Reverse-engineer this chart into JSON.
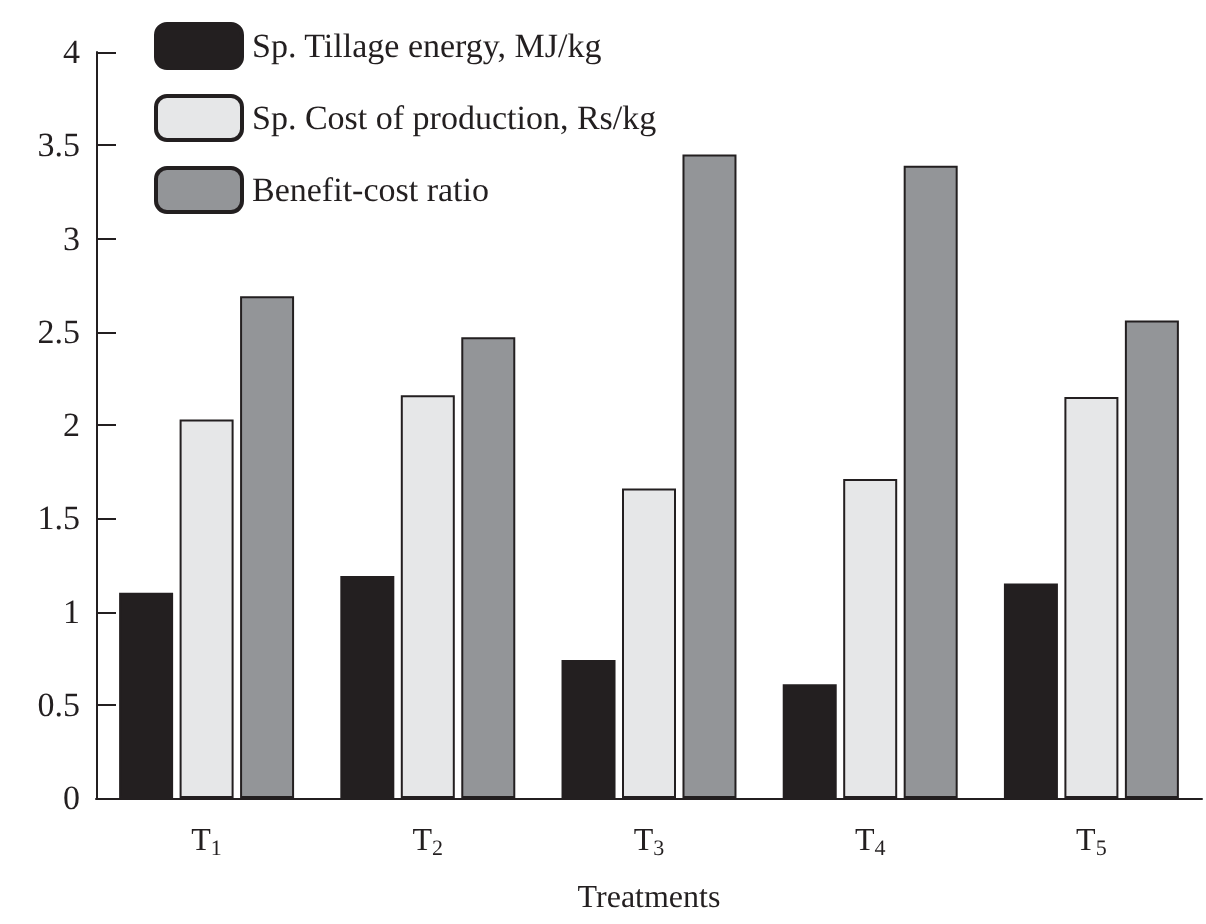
{
  "chart_data": {
    "type": "bar",
    "xlabel": "Treatments",
    "categories": [
      "T$_{1}$",
      "T$_{2}$",
      "T$_{3}$",
      "T$_{4}$",
      "T$_{5}$"
    ],
    "series": [
      {
        "name": "Sp. Tillage energy, MJ/kg",
        "color": "#231f20",
        "values": [
          1.1,
          1.19,
          0.74,
          0.61,
          1.15
        ]
      },
      {
        "name": "Sp. Cost of production, Rs/kg",
        "color": "#e6e7e8",
        "values": [
          2.03,
          2.16,
          1.66,
          1.71,
          2.15
        ]
      },
      {
        "name": "Benefit-cost ratio",
        "color": "#939598",
        "values": [
          2.69,
          2.47,
          3.45,
          3.39,
          2.56
        ]
      }
    ],
    "ylim": [
      0,
      4
    ],
    "yticks": [
      0,
      0.5,
      1,
      1.5,
      2,
      2.5,
      3,
      3.5,
      4
    ],
    "grid": false,
    "legend": "top left"
  }
}
